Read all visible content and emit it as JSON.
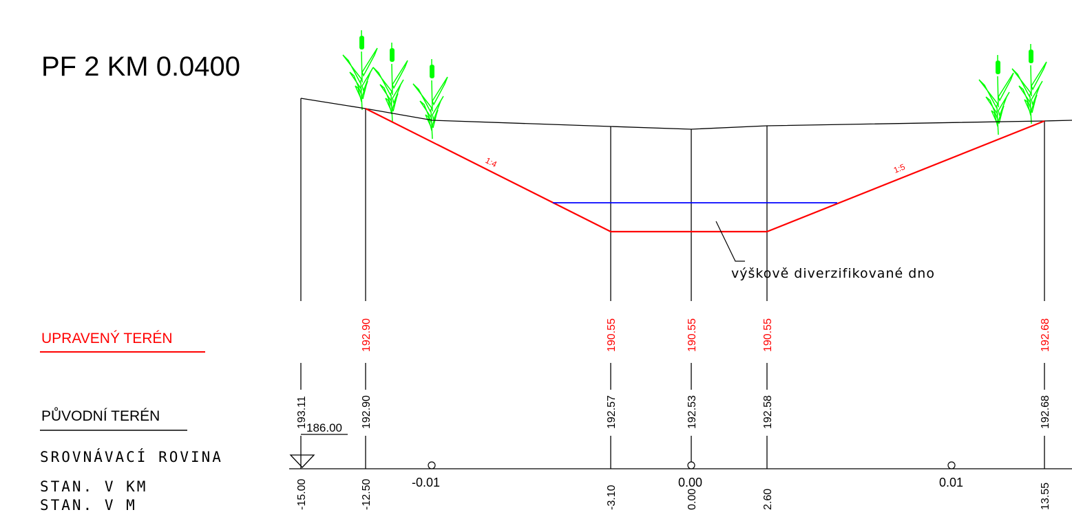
{
  "title": "PF 2  KM 0.0400",
  "colors": {
    "design": "#ff0000",
    "water": "#0000ff",
    "vegetation": "#00ff00",
    "line": "#000000"
  },
  "labels": {
    "designed_terrain": "UPRAVENÝ TERÉN",
    "original_terrain": "PŮVODNÍ TERÉN",
    "datum_plane": "SROVNÁVACÍ ROVINA",
    "station_km": "STAN. V KM",
    "station_m": "STAN. V M"
  },
  "datum_value": "186.00",
  "note": "výškově diverzifikované dno",
  "slopes": {
    "left": "1:4",
    "right": "1:5"
  },
  "designed_elevations": [
    "192.90",
    "190.55",
    "190.55",
    "190.55",
    "192.68"
  ],
  "original_elevations": [
    "193.11",
    "192.90",
    "192.57",
    "192.53",
    "192.58",
    "192.68"
  ],
  "stations_m": [
    "-15.00",
    "-12.50",
    "-3.10",
    "0.00",
    "2.60",
    "13.55"
  ],
  "stations_km": [
    "-0.01",
    "0.00",
    "0.01"
  ],
  "icons": [
    "reed-icon",
    "datum-triangle-icon",
    "circle-marker-icon"
  ]
}
